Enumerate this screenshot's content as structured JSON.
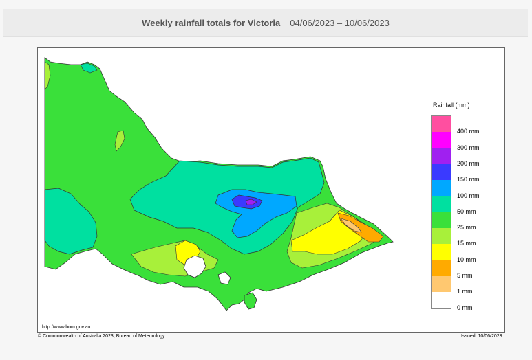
{
  "header": {
    "title": "Weekly rainfall totals for Victoria",
    "date_range": "04/06/2023 – 10/06/2023"
  },
  "map": {
    "url": "http://www.bom.gov.au"
  },
  "legend": {
    "title": "Rainfall (mm)",
    "bands": [
      {
        "label": "400 mm",
        "color": "#ff4fa0"
      },
      {
        "label": "300 mm",
        "color": "#ff00ff"
      },
      {
        "label": "200 mm",
        "color": "#a020f0"
      },
      {
        "label": "150 mm",
        "color": "#3a3aff"
      },
      {
        "label": "100 mm",
        "color": "#00a8ff"
      },
      {
        "label": "50 mm",
        "color": "#00e0a0"
      },
      {
        "label": "25 mm",
        "color": "#3ae03a"
      },
      {
        "label": "15 mm",
        "color": "#a8f03a"
      },
      {
        "label": "10 mm",
        "color": "#ffff00"
      },
      {
        "label": "5 mm",
        "color": "#ffaa00"
      },
      {
        "label": "1 mm",
        "color": "#ffc870"
      },
      {
        "label": "0 mm",
        "color": "#ffffff"
      }
    ]
  },
  "footer": {
    "copyright": "© Commonwealth of Australia 2023, Bureau of Meteorology",
    "issued": "Issued: 10/06/2023"
  }
}
